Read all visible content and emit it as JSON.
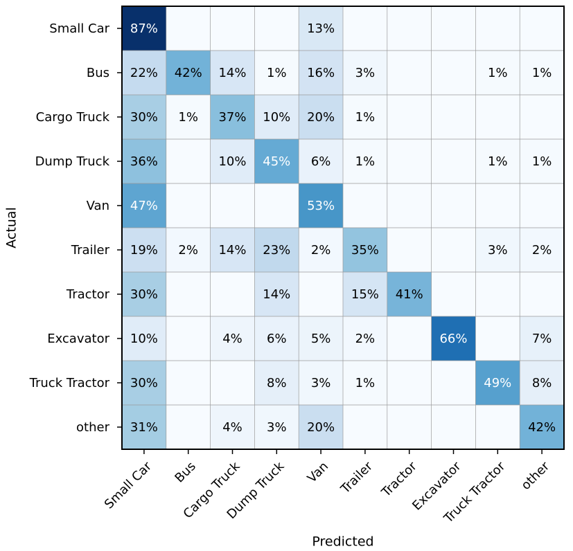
{
  "chart_data": {
    "type": "heatmap",
    "title": "",
    "xlabel": "Predicted",
    "ylabel": "Actual",
    "x_categories": [
      "Small Car",
      "Bus",
      "Cargo Truck",
      "Dump Truck",
      "Van",
      "Trailer",
      "Tractor",
      "Excavator",
      "Truck Tractor",
      "other"
    ],
    "y_categories": [
      "Small Car",
      "Bus",
      "Cargo Truck",
      "Dump Truck",
      "Van",
      "Trailer",
      "Tractor",
      "Excavator",
      "Truck Tractor",
      "other"
    ],
    "value_unit": "%",
    "value_range": [
      0,
      100
    ],
    "colormap": "Blues",
    "values": [
      [
        87,
        null,
        null,
        null,
        13,
        null,
        null,
        null,
        null,
        null
      ],
      [
        22,
        42,
        14,
        1,
        16,
        3,
        null,
        null,
        1,
        1
      ],
      [
        30,
        1,
        37,
        10,
        20,
        1,
        null,
        null,
        null,
        null
      ],
      [
        36,
        null,
        10,
        45,
        6,
        1,
        null,
        null,
        1,
        1
      ],
      [
        47,
        null,
        null,
        null,
        53,
        null,
        null,
        null,
        null,
        null
      ],
      [
        19,
        2,
        14,
        23,
        2,
        35,
        null,
        null,
        3,
        2
      ],
      [
        30,
        null,
        null,
        14,
        null,
        15,
        41,
        null,
        null,
        null
      ],
      [
        10,
        null,
        4,
        6,
        5,
        2,
        null,
        66,
        null,
        7
      ],
      [
        30,
        null,
        null,
        8,
        3,
        1,
        null,
        null,
        49,
        8
      ],
      [
        31,
        null,
        4,
        3,
        20,
        null,
        null,
        null,
        null,
        42
      ]
    ]
  }
}
